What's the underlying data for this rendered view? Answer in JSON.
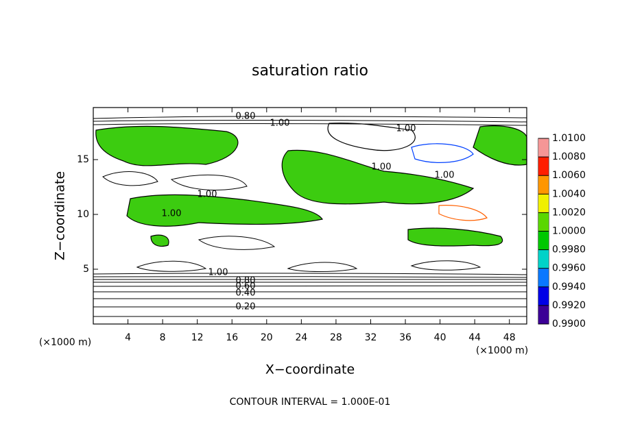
{
  "chart_data": {
    "type": "contour",
    "title": "saturation ratio",
    "x_label": "X−coordinate",
    "y_label": "Z−coordinate",
    "x_unit_left": "(×1000 m)",
    "x_unit_right": "(×1000 m)",
    "note": "CONTOUR INTERVAL = 1.000E-01",
    "xlim": [
      0,
      50
    ],
    "xticks": [
      4,
      8,
      12,
      16,
      20,
      24,
      28,
      32,
      36,
      40,
      44,
      48
    ],
    "ylim": [
      0,
      19.75
    ],
    "yticks": [
      5,
      10,
      15
    ],
    "contour_labels": [
      "0.80",
      "1.00",
      "1.00",
      "1.00",
      "1.00",
      "1.00",
      "1.00",
      "1.00",
      "0.80",
      "0.60",
      "0.40",
      "0.20"
    ],
    "colorbar": {
      "levels": [
        {
          "value": 0.99,
          "label": "0.9900"
        },
        {
          "value": 0.992,
          "label": "0.9920"
        },
        {
          "value": 0.994,
          "label": "0.9940"
        },
        {
          "value": 0.996,
          "label": "0.9960"
        },
        {
          "value": 0.998,
          "label": "0.9980"
        },
        {
          "value": 1.0,
          "label": "1.0000"
        },
        {
          "value": 1.002,
          "label": "1.0020"
        },
        {
          "value": 1.004,
          "label": "1.0040"
        },
        {
          "value": 1.006,
          "label": "1.0060"
        },
        {
          "value": 1.008,
          "label": "1.0080"
        },
        {
          "value": 1.01,
          "label": "1.0100"
        }
      ],
      "colors": [
        "#3c0096",
        "#0000e6",
        "#0a78ff",
        "#00d2c8",
        "#00c800",
        "#5ad700",
        "#f0f000",
        "#ff9600",
        "#ff1e00",
        "#f59696"
      ]
    }
  }
}
